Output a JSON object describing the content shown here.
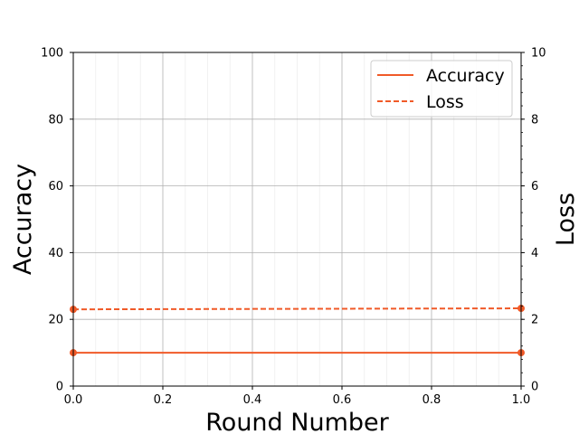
{
  "chart_data": {
    "type": "line",
    "title": "",
    "xlabel": "Round Number",
    "ylabel": "Accuracy",
    "y2label": "Loss",
    "xlim": [
      0.0,
      1.0
    ],
    "ylim": [
      0,
      100
    ],
    "y2lim": [
      0,
      10
    ],
    "x_ticks": [
      "0.0",
      "0.2",
      "0.4",
      "0.6",
      "0.8",
      "1.0"
    ],
    "y_ticks": [
      "0",
      "20",
      "40",
      "60",
      "80",
      "100"
    ],
    "y2_ticks": [
      "0",
      "2",
      "4",
      "6",
      "8",
      "10"
    ],
    "grid": true,
    "legend_position": "top-right",
    "series": [
      {
        "name": "Accuracy",
        "axis": "left",
        "style": "solid",
        "color": "#f05a28",
        "x": [
          0,
          1
        ],
        "y": [
          10.0,
          10.0
        ]
      },
      {
        "name": "Loss",
        "axis": "right",
        "style": "dashed",
        "color": "#f05a28",
        "x": [
          0,
          1
        ],
        "y": [
          2.3,
          2.33
        ]
      }
    ]
  }
}
